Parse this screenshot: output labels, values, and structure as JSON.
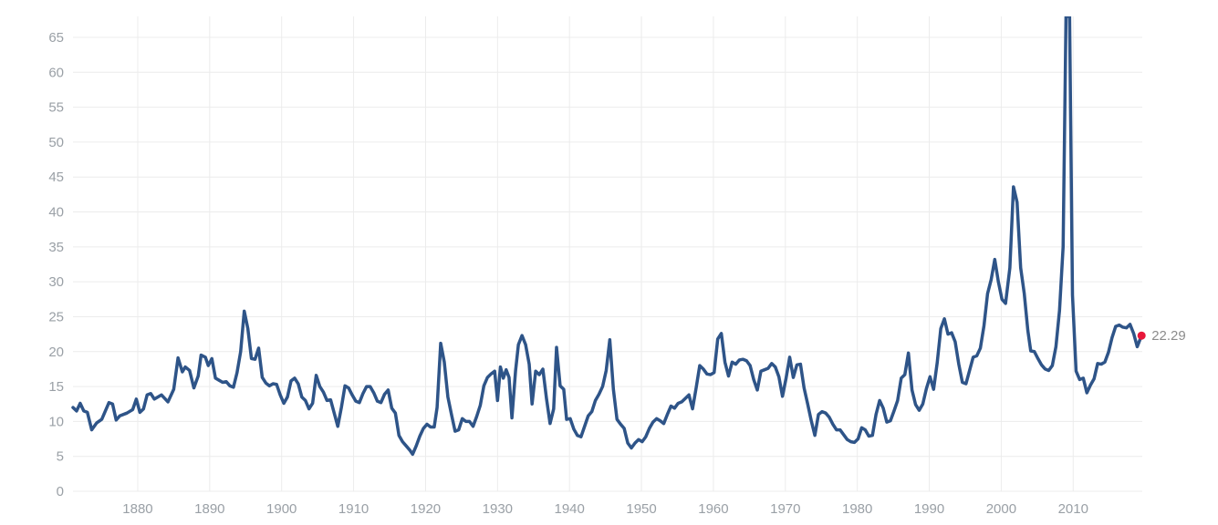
{
  "chart_data": {
    "type": "line",
    "title": "",
    "xlabel": "",
    "ylabel": "",
    "xlim": [
      1871,
      2019.6
    ],
    "ylim": [
      0,
      68
    ],
    "x_ticks": [
      1880,
      1890,
      1900,
      1910,
      1920,
      1930,
      1940,
      1950,
      1960,
      1970,
      1980,
      1990,
      2000,
      2010
    ],
    "y_ticks": [
      0,
      5,
      10,
      15,
      20,
      25,
      30,
      35,
      40,
      45,
      50,
      55,
      60,
      65
    ],
    "grid": true,
    "legend": "none",
    "line_color": "#2e5488",
    "marker_color": "#e8173a",
    "last_value_label": "22.29",
    "series": [
      {
        "points": [
          [
            1871,
            12.0
          ],
          [
            1871.5,
            11.5
          ],
          [
            1872,
            12.6
          ],
          [
            1872.5,
            11.5
          ],
          [
            1873,
            11.3
          ],
          [
            1873.6,
            8.8
          ],
          [
            1874.3,
            9.8
          ],
          [
            1875,
            10.3
          ],
          [
            1876,
            12.7
          ],
          [
            1876.5,
            12.5
          ],
          [
            1877,
            10.2
          ],
          [
            1877.5,
            10.8
          ],
          [
            1878.5,
            11.2
          ],
          [
            1879.3,
            11.7
          ],
          [
            1879.8,
            13.2
          ],
          [
            1880.3,
            11.3
          ],
          [
            1880.8,
            11.8
          ],
          [
            1881.3,
            13.8
          ],
          [
            1881.8,
            14.0
          ],
          [
            1882.3,
            13.2
          ],
          [
            1883.3,
            13.8
          ],
          [
            1884.2,
            12.8
          ],
          [
            1885,
            14.6
          ],
          [
            1885.6,
            19.1
          ],
          [
            1886.2,
            17.1
          ],
          [
            1886.6,
            17.8
          ],
          [
            1887.2,
            17.3
          ],
          [
            1887.8,
            14.8
          ],
          [
            1888.4,
            16.5
          ],
          [
            1888.8,
            19.5
          ],
          [
            1889.4,
            19.2
          ],
          [
            1889.8,
            18.0
          ],
          [
            1890.3,
            19.0
          ],
          [
            1890.8,
            16.2
          ],
          [
            1891.3,
            15.9
          ],
          [
            1891.8,
            15.6
          ],
          [
            1892.3,
            15.7
          ],
          [
            1892.8,
            15.1
          ],
          [
            1893.3,
            14.9
          ],
          [
            1893.8,
            17.0
          ],
          [
            1894.3,
            20.0
          ],
          [
            1894.8,
            25.8
          ],
          [
            1895.3,
            23.3
          ],
          [
            1895.8,
            19.0
          ],
          [
            1896.3,
            18.9
          ],
          [
            1896.8,
            20.5
          ],
          [
            1897.3,
            16.3
          ],
          [
            1897.8,
            15.5
          ],
          [
            1898.3,
            15.1
          ],
          [
            1898.8,
            15.4
          ],
          [
            1899.3,
            15.3
          ],
          [
            1899.8,
            13.8
          ],
          [
            1900.3,
            12.6
          ],
          [
            1900.8,
            13.5
          ],
          [
            1901.3,
            15.8
          ],
          [
            1901.8,
            16.2
          ],
          [
            1902.3,
            15.4
          ],
          [
            1902.8,
            13.5
          ],
          [
            1903.3,
            13.0
          ],
          [
            1903.8,
            11.8
          ],
          [
            1904.3,
            12.6
          ],
          [
            1904.8,
            16.6
          ],
          [
            1905.3,
            15.0
          ],
          [
            1905.8,
            14.2
          ],
          [
            1906.3,
            13.0
          ],
          [
            1906.8,
            13.1
          ],
          [
            1907.3,
            11.2
          ],
          [
            1907.8,
            9.3
          ],
          [
            1908.3,
            12.0
          ],
          [
            1908.8,
            15.1
          ],
          [
            1909.3,
            14.8
          ],
          [
            1909.8,
            13.8
          ],
          [
            1910.3,
            12.9
          ],
          [
            1910.8,
            12.7
          ],
          [
            1911.3,
            14.0
          ],
          [
            1911.8,
            15.0
          ],
          [
            1912.3,
            15.0
          ],
          [
            1912.8,
            14.1
          ],
          [
            1913.3,
            12.9
          ],
          [
            1913.8,
            12.7
          ],
          [
            1914.3,
            13.9
          ],
          [
            1914.8,
            14.5
          ],
          [
            1915.3,
            11.9
          ],
          [
            1915.8,
            11.2
          ],
          [
            1916.3,
            8.0
          ],
          [
            1916.8,
            7.1
          ],
          [
            1917.3,
            6.5
          ],
          [
            1917.8,
            5.9
          ],
          [
            1918.2,
            5.3
          ],
          [
            1918.7,
            6.5
          ],
          [
            1919.2,
            7.9
          ],
          [
            1919.7,
            9.0
          ],
          [
            1920.2,
            9.6
          ],
          [
            1920.7,
            9.2
          ],
          [
            1921.2,
            9.2
          ],
          [
            1921.6,
            12.0
          ],
          [
            1922.1,
            21.2
          ],
          [
            1922.6,
            18.5
          ],
          [
            1923.1,
            13.5
          ],
          [
            1923.6,
            11.0
          ],
          [
            1924.1,
            8.6
          ],
          [
            1924.6,
            8.8
          ],
          [
            1925.1,
            10.4
          ],
          [
            1925.6,
            10.0
          ],
          [
            1926.1,
            10.0
          ],
          [
            1926.6,
            9.3
          ],
          [
            1927.1,
            10.7
          ],
          [
            1927.6,
            12.3
          ],
          [
            1928.1,
            15.1
          ],
          [
            1928.6,
            16.3
          ],
          [
            1929.1,
            16.8
          ],
          [
            1929.6,
            17.2
          ],
          [
            1930,
            13.0
          ],
          [
            1930.4,
            17.8
          ],
          [
            1930.8,
            16.2
          ],
          [
            1931.2,
            17.4
          ],
          [
            1931.6,
            16.3
          ],
          [
            1932,
            10.5
          ],
          [
            1932.5,
            17.2
          ],
          [
            1932.9,
            21.0
          ],
          [
            1933.4,
            22.3
          ],
          [
            1933.9,
            21.0
          ],
          [
            1934.4,
            18.2
          ],
          [
            1934.8,
            12.5
          ],
          [
            1935.3,
            17.2
          ],
          [
            1935.8,
            16.7
          ],
          [
            1936.3,
            17.5
          ],
          [
            1936.8,
            13.3
          ],
          [
            1937.3,
            9.7
          ],
          [
            1937.8,
            11.8
          ],
          [
            1938.2,
            20.6
          ],
          [
            1938.7,
            15.1
          ],
          [
            1939.2,
            14.6
          ],
          [
            1939.6,
            10.3
          ],
          [
            1940.1,
            10.4
          ],
          [
            1940.6,
            8.9
          ],
          [
            1941.1,
            8.0
          ],
          [
            1941.6,
            7.8
          ],
          [
            1942.1,
            9.3
          ],
          [
            1942.6,
            10.8
          ],
          [
            1943.1,
            11.4
          ],
          [
            1943.6,
            13.0
          ],
          [
            1944.1,
            13.9
          ],
          [
            1944.6,
            15.0
          ],
          [
            1945.1,
            17.3
          ],
          [
            1945.6,
            21.7
          ],
          [
            1946.1,
            14.6
          ],
          [
            1946.6,
            10.3
          ],
          [
            1947.1,
            9.6
          ],
          [
            1947.6,
            9.0
          ],
          [
            1948.1,
            6.9
          ],
          [
            1948.6,
            6.2
          ],
          [
            1949.1,
            6.9
          ],
          [
            1949.6,
            7.4
          ],
          [
            1950.1,
            7.1
          ],
          [
            1950.6,
            7.8
          ],
          [
            1951.1,
            9.0
          ],
          [
            1951.6,
            9.9
          ],
          [
            1952.1,
            10.4
          ],
          [
            1952.6,
            10.1
          ],
          [
            1953.1,
            9.7
          ],
          [
            1953.6,
            11.0
          ],
          [
            1954.1,
            12.2
          ],
          [
            1954.6,
            11.9
          ],
          [
            1955.1,
            12.6
          ],
          [
            1955.6,
            12.8
          ],
          [
            1956.1,
            13.3
          ],
          [
            1956.6,
            13.8
          ],
          [
            1957.1,
            11.8
          ],
          [
            1957.6,
            14.8
          ],
          [
            1958.1,
            18.0
          ],
          [
            1958.6,
            17.5
          ],
          [
            1959.1,
            16.8
          ],
          [
            1959.6,
            16.7
          ],
          [
            1960.1,
            17.0
          ],
          [
            1960.6,
            21.8
          ],
          [
            1961.1,
            22.6
          ],
          [
            1961.6,
            18.5
          ],
          [
            1962.1,
            16.5
          ],
          [
            1962.6,
            18.5
          ],
          [
            1963.1,
            18.2
          ],
          [
            1963.6,
            18.8
          ],
          [
            1964.1,
            18.9
          ],
          [
            1964.6,
            18.7
          ],
          [
            1965.1,
            18.0
          ],
          [
            1965.6,
            16.0
          ],
          [
            1966.1,
            14.5
          ],
          [
            1966.6,
            17.2
          ],
          [
            1967.1,
            17.4
          ],
          [
            1967.6,
            17.6
          ],
          [
            1968.1,
            18.3
          ],
          [
            1968.6,
            17.8
          ],
          [
            1969.1,
            16.4
          ],
          [
            1969.6,
            13.6
          ],
          [
            1970.1,
            16.2
          ],
          [
            1970.6,
            19.2
          ],
          [
            1971.1,
            16.3
          ],
          [
            1971.6,
            18.1
          ],
          [
            1972.1,
            18.2
          ],
          [
            1972.6,
            14.8
          ],
          [
            1973.1,
            12.5
          ],
          [
            1973.6,
            10.1
          ],
          [
            1974.1,
            8.0
          ],
          [
            1974.6,
            11.0
          ],
          [
            1975.1,
            11.4
          ],
          [
            1975.6,
            11.2
          ],
          [
            1976.1,
            10.6
          ],
          [
            1976.6,
            9.6
          ],
          [
            1977.1,
            8.8
          ],
          [
            1977.6,
            8.8
          ],
          [
            1978.1,
            8.1
          ],
          [
            1978.6,
            7.4
          ],
          [
            1979.1,
            7.1
          ],
          [
            1979.6,
            7.0
          ],
          [
            1980.1,
            7.5
          ],
          [
            1980.6,
            9.1
          ],
          [
            1981.1,
            8.8
          ],
          [
            1981.6,
            7.9
          ],
          [
            1982.1,
            8.0
          ],
          [
            1982.6,
            11.0
          ],
          [
            1983.1,
            13.0
          ],
          [
            1983.6,
            11.9
          ],
          [
            1984.1,
            9.9
          ],
          [
            1984.6,
            10.1
          ],
          [
            1985.1,
            11.5
          ],
          [
            1985.6,
            13.0
          ],
          [
            1986.1,
            16.2
          ],
          [
            1986.6,
            16.7
          ],
          [
            1987.1,
            19.8
          ],
          [
            1987.6,
            14.5
          ],
          [
            1988.1,
            12.4
          ],
          [
            1988.6,
            11.6
          ],
          [
            1989.1,
            12.5
          ],
          [
            1989.6,
            14.7
          ],
          [
            1990.1,
            16.4
          ],
          [
            1990.6,
            14.6
          ],
          [
            1991.1,
            18.4
          ],
          [
            1991.6,
            23.3
          ],
          [
            1992.1,
            24.7
          ],
          [
            1992.6,
            22.5
          ],
          [
            1993.1,
            22.7
          ],
          [
            1993.6,
            21.4
          ],
          [
            1994.1,
            18.2
          ],
          [
            1994.6,
            15.6
          ],
          [
            1995.1,
            15.4
          ],
          [
            1995.6,
            17.3
          ],
          [
            1996.1,
            19.2
          ],
          [
            1996.6,
            19.4
          ],
          [
            1997.1,
            20.5
          ],
          [
            1997.6,
            23.7
          ],
          [
            1998.1,
            28.3
          ],
          [
            1998.6,
            30.3
          ],
          [
            1999.1,
            33.2
          ],
          [
            1999.6,
            30.0
          ],
          [
            2000.1,
            27.5
          ],
          [
            2000.6,
            26.9
          ],
          [
            2001.2,
            32.0
          ],
          [
            2001.7,
            43.6
          ],
          [
            2002.2,
            41.4
          ],
          [
            2002.7,
            32.0
          ],
          [
            2003.2,
            28.3
          ],
          [
            2003.7,
            23.0
          ],
          [
            2004.1,
            20.1
          ],
          [
            2004.6,
            20.0
          ],
          [
            2005.1,
            19.0
          ],
          [
            2005.6,
            18.1
          ],
          [
            2006.1,
            17.5
          ],
          [
            2006.6,
            17.3
          ],
          [
            2007.1,
            18.0
          ],
          [
            2007.6,
            20.7
          ],
          [
            2008.1,
            25.9
          ],
          [
            2008.6,
            35.0
          ],
          [
            2009.0,
            68.0
          ],
          [
            2009.5,
            68.0
          ],
          [
            2009.9,
            28.1
          ],
          [
            2010.4,
            17.2
          ],
          [
            2010.9,
            16.0
          ],
          [
            2011.4,
            16.2
          ],
          [
            2011.9,
            14.1
          ],
          [
            2012.4,
            15.2
          ],
          [
            2012.9,
            16.1
          ],
          [
            2013.4,
            18.3
          ],
          [
            2013.9,
            18.2
          ],
          [
            2014.4,
            18.5
          ],
          [
            2014.9,
            19.9
          ],
          [
            2015.4,
            22.0
          ],
          [
            2015.9,
            23.6
          ],
          [
            2016.4,
            23.8
          ],
          [
            2016.9,
            23.5
          ],
          [
            2017.4,
            23.4
          ],
          [
            2017.9,
            23.9
          ],
          [
            2018.4,
            22.6
          ],
          [
            2018.9,
            20.7
          ],
          [
            2019.5,
            22.29
          ]
        ]
      }
    ]
  }
}
